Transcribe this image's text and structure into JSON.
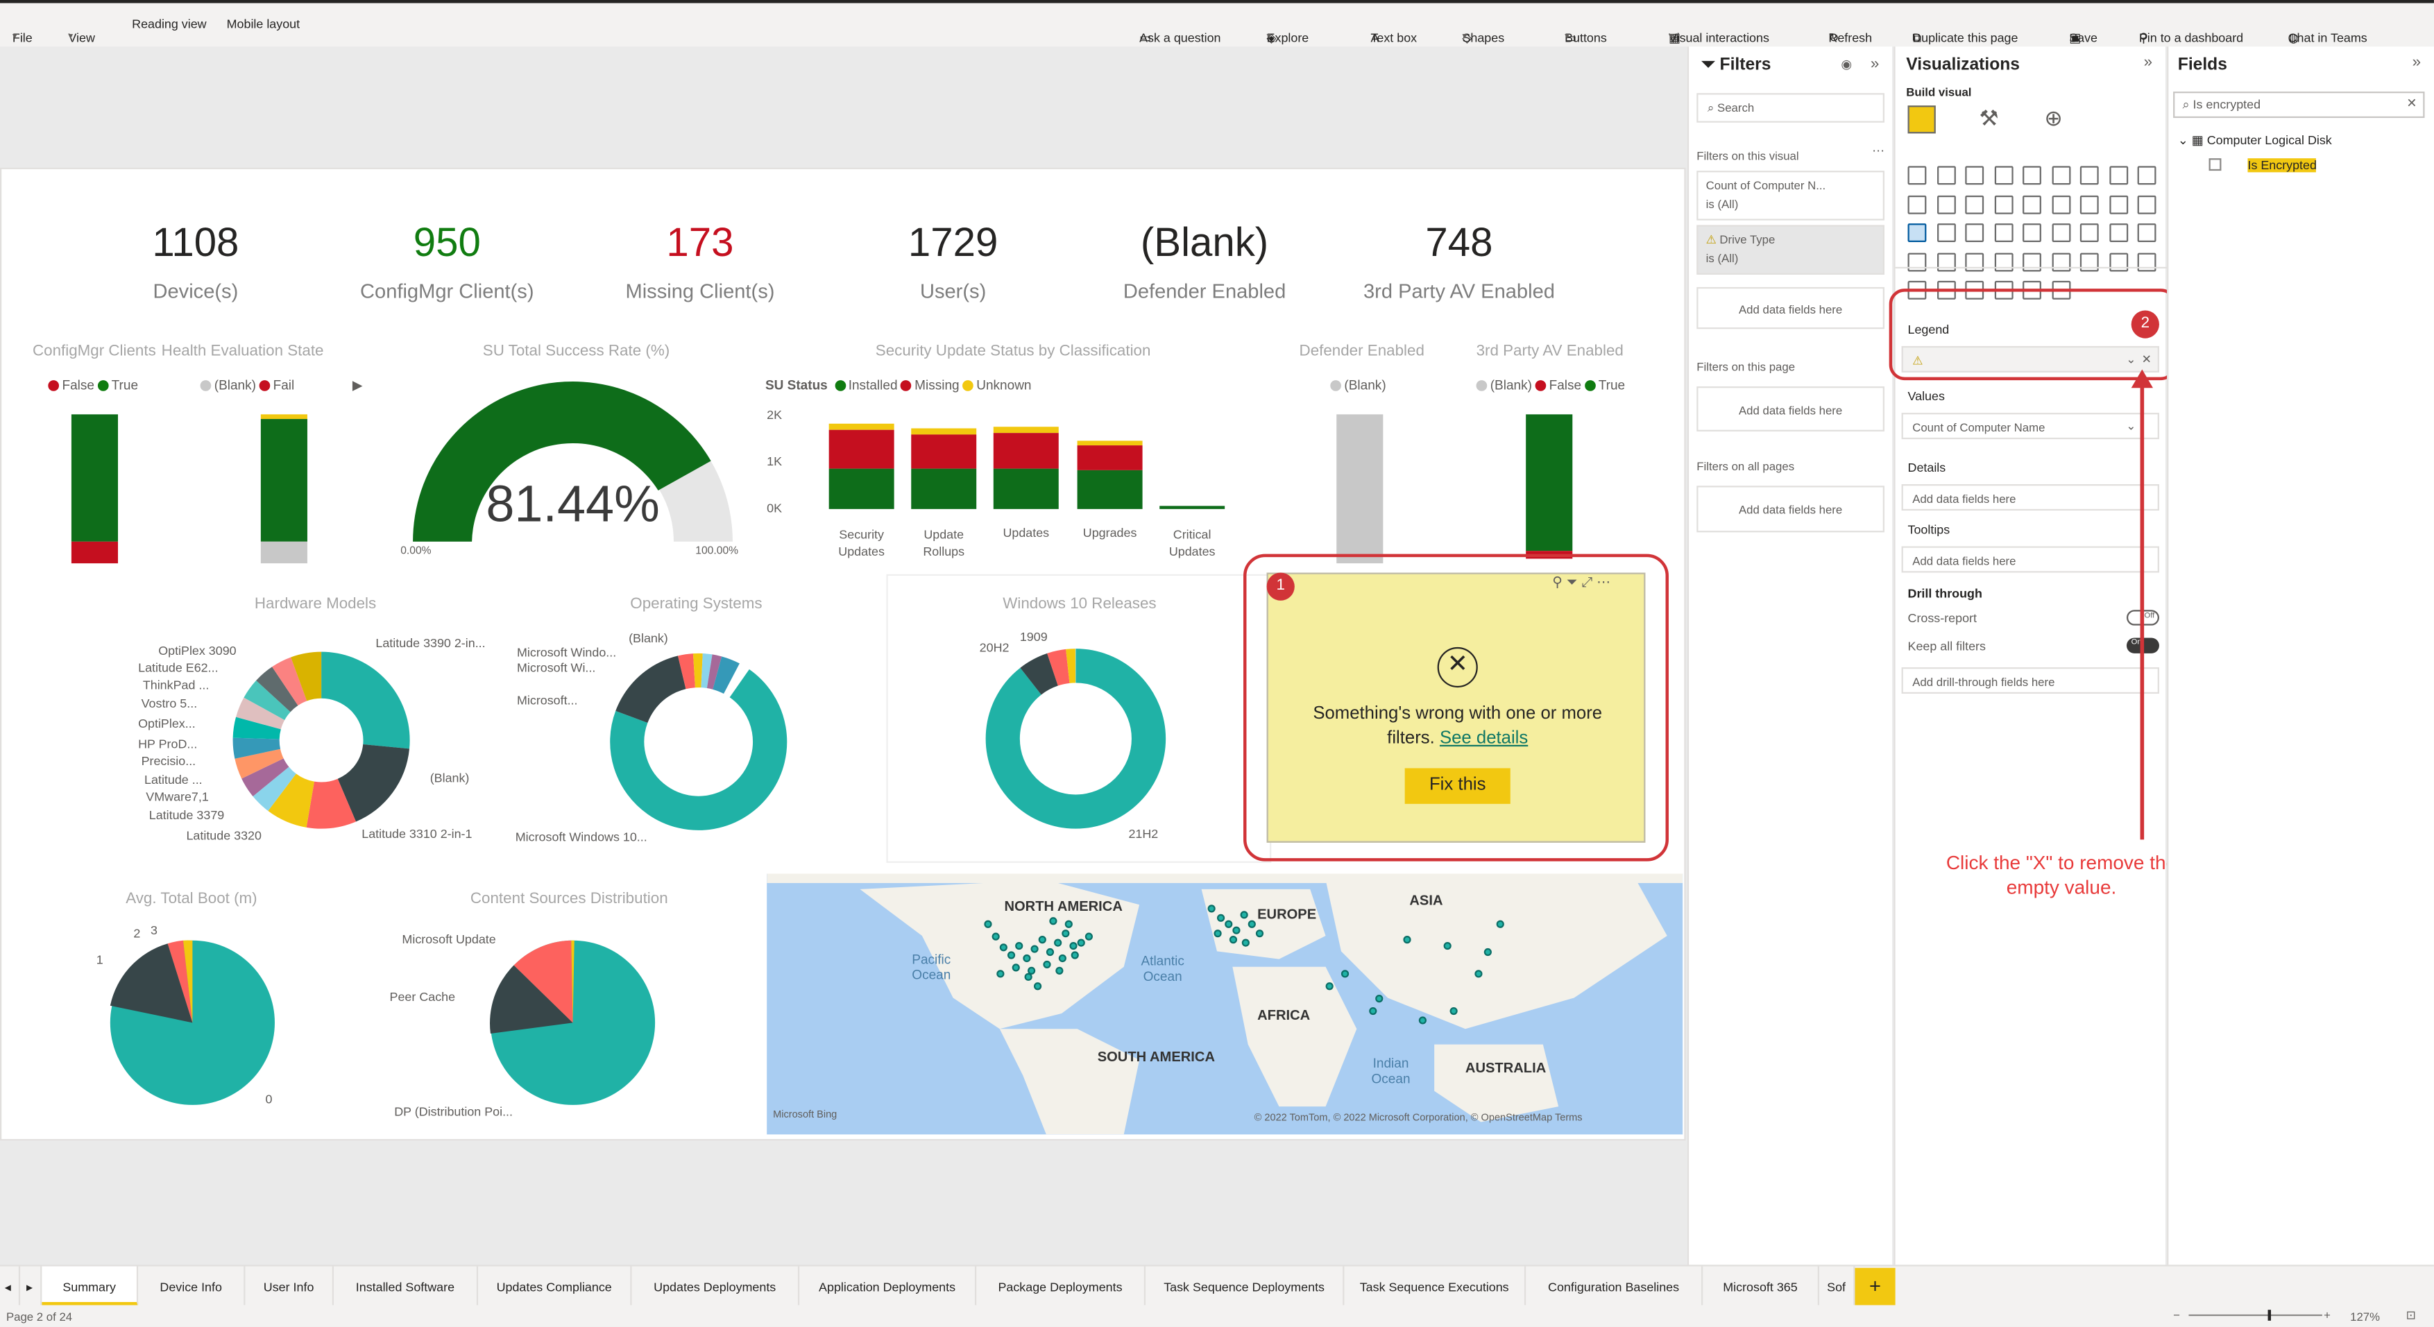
{
  "menu": {
    "file": "File",
    "view": "View",
    "reading": "Reading view",
    "mobile": "Mobile layout",
    "ask": "Ask a question",
    "explore": "Explore",
    "textbox": "Text box",
    "shapes": "Shapes",
    "buttons": "Buttons",
    "interactions": "Visual interactions",
    "refresh": "Refresh",
    "duplicate": "Duplicate this page",
    "save": "Save",
    "pin": "Pin to a dashboard",
    "chat": "Chat in Teams"
  },
  "kpis": [
    {
      "value": "1108",
      "label": "Device(s)",
      "color": "#252423"
    },
    {
      "value": "950",
      "label": "ConfigMgr Client(s)",
      "color": "#107c10"
    },
    {
      "value": "173",
      "label": "Missing Client(s)",
      "color": "#c50f1f"
    },
    {
      "value": "1729",
      "label": "User(s)",
      "color": "#252423"
    },
    {
      "value": "(Blank)",
      "label": "Defender Enabled",
      "color": "#252423"
    },
    {
      "value": "748",
      "label": "3rd Party AV Enabled",
      "color": "#252423"
    }
  ],
  "visuals": {
    "configmgr": {
      "title": "ConfigMgr Clients",
      "legend": [
        "False",
        "True"
      ]
    },
    "health": {
      "title": "Health Evaluation State",
      "legend": [
        "(Blank)",
        "Fail"
      ]
    },
    "su_rate": {
      "title": "SU Total Success Rate (%)",
      "value": "81.44%",
      "min": "0.00%",
      "max": "100.00%"
    },
    "su_status": {
      "title": "Security Update Status by Classification",
      "legend_title": "SU Status",
      "legend": [
        "Installed",
        "Missing",
        "Unknown"
      ],
      "yticks": [
        "2K",
        "1K",
        "0K"
      ],
      "categories": [
        "Security Updates",
        "Update Rollups",
        "Updates",
        "Upgrades",
        "Critical Updates"
      ]
    },
    "defender": {
      "title": "Defender Enabled",
      "legend": [
        "(Blank)"
      ]
    },
    "thirdav": {
      "title": "3rd Party AV Enabled",
      "legend": [
        "(Blank)",
        "False",
        "True"
      ]
    },
    "hardware": {
      "title": "Hardware Models",
      "labels": [
        "OptiPlex 3090",
        "Latitude E62...",
        "ThinkPad ...",
        "Vostro 5...",
        "OptiPlex...",
        "HP ProD...",
        "Precisio...",
        "Latitude ...",
        "VMware7,1",
        "Latitude 3379",
        "Latitude 3320",
        "Latitude 3390 2-in...",
        "(Blank)",
        "Latitude 3310 2-in-1"
      ]
    },
    "os": {
      "title": "Operating Systems",
      "labels": [
        "Microsoft Windo...",
        "Microsoft Wi...",
        "(Blank)",
        "Microsoft...",
        "Microsoft Windows 10..."
      ]
    },
    "win10": {
      "title": "Windows 10 Releases",
      "labels": [
        "20H2",
        "1909",
        "21H2"
      ]
    },
    "boot": {
      "title": "Avg. Total Boot (m)",
      "labels": [
        "2",
        "3",
        "1",
        "0"
      ]
    },
    "content": {
      "title": "Content Sources Distribution",
      "labels": [
        "Microsoft Update",
        "Peer Cache",
        "DP (Distribution Poi..."
      ]
    },
    "map": {
      "labels": [
        "NORTH AMERICA",
        "EUROPE",
        "ASIA",
        "Pacific Ocean",
        "Atlantic Ocean",
        "AFRICA",
        "SOUTH AMERICA",
        "Indian Ocean",
        "AUSTRALIA"
      ],
      "credit": "© 2022 TomTom, © 2022 Microsoft Corporation, © OpenStreetMap  Terms",
      "bing": "Microsoft Bing"
    }
  },
  "error_card": {
    "badge": "1",
    "message1": "Something's wrong with one or more",
    "message2": "filters.",
    "link": "See details",
    "button": "Fix this"
  },
  "filters": {
    "title": "Filters",
    "search": "Search",
    "on_visual": "Filters on this visual",
    "card1_title": "Count of Computer N...",
    "card1_value": "is (All)",
    "card2_title": "Drive Type",
    "card2_value": "is (All)",
    "add": "Add data fields here",
    "on_page": "Filters on this page",
    "on_all": "Filters on all pages"
  },
  "viz": {
    "title": "Visualizations",
    "build": "Build visual",
    "badge": "2",
    "legend": "Legend",
    "values": "Values",
    "values_field": "Count of Computer Name",
    "details": "Details",
    "tooltips": "Tooltips",
    "add": "Add data fields here",
    "drill": "Drill through",
    "cross": "Cross-report",
    "keep": "Keep all filters",
    "cross_state": "Off",
    "keep_state": "On",
    "drill_add": "Add drill-through fields here"
  },
  "annotation": "Click the \"X\" to remove the empty value.",
  "fields": {
    "title": "Fields",
    "search_value": "Is encrypted",
    "table": "Computer Logical Disk",
    "field": "Is Encrypted"
  },
  "tabs": [
    "Summary",
    "Device Info",
    "User Info",
    "Installed Software",
    "Updates Compliance",
    "Updates Deployments",
    "Application Deployments",
    "Package Deployments",
    "Task Sequence Deployments",
    "Task Sequence Executions",
    "Configuration Baselines",
    "Microsoft 365",
    "Sof"
  ],
  "status": {
    "page": "Page 2 of 24",
    "zoom": "127%"
  }
}
